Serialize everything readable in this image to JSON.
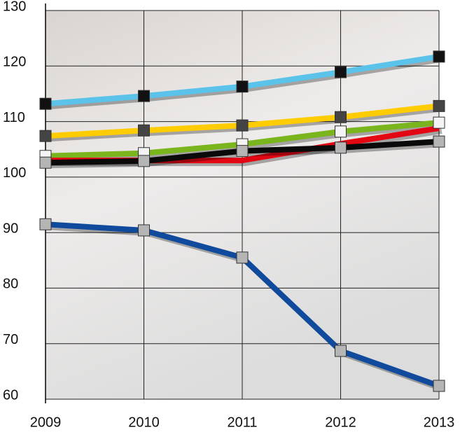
{
  "chart_data": {
    "type": "line",
    "x": [
      "2009",
      "2010",
      "2011",
      "2012",
      "2013"
    ],
    "ylim": [
      60,
      130
    ],
    "yticks": [
      60,
      70,
      80,
      90,
      100,
      110,
      120,
      130
    ],
    "grid": true,
    "series": [
      {
        "color": "#5bc3ea",
        "marker_color": "#111111",
        "values": [
          113.2,
          114.6,
          116.3,
          118.9,
          121.7
        ]
      },
      {
        "color": "#ffcc00",
        "marker_color": "#444444",
        "values": [
          107.4,
          108.4,
          109.3,
          110.8,
          112.8
        ]
      },
      {
        "color": "#7ab51d",
        "marker_color": "#f4f4f4",
        "values": [
          103.8,
          104.3,
          105.9,
          108.2,
          109.8
        ]
      },
      {
        "color": "#e30613",
        "values": [
          103.0,
          103.0,
          103.0,
          106.0,
          108.8
        ]
      },
      {
        "color": "#0a0a0a",
        "marker_color": "#b5b5b5",
        "values": [
          102.6,
          102.9,
          104.7,
          105.3,
          106.4
        ]
      },
      {
        "color": "#0f4a9c",
        "marker_color": "#b5b5b5",
        "values": [
          91.5,
          90.4,
          85.5,
          68.7,
          62.4
        ]
      }
    ]
  }
}
